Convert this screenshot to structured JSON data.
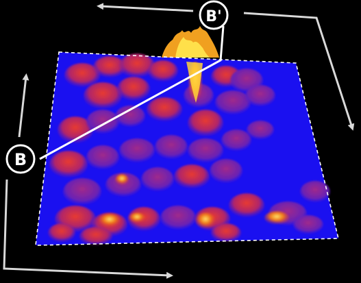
{
  "figure": {
    "background_color": "#000000",
    "plate_color": "#1a10f0",
    "plate_border_color": "#ffffff",
    "arrow_color": "#d9d9d9",
    "cut_line_color": "#ffffff",
    "heat_colors": [
      "#5a1ca8",
      "#9a1f8c",
      "#d42a3a",
      "#f06a1a",
      "#ffd23a"
    ],
    "markers": {
      "start": "B",
      "end": "B'"
    }
  }
}
